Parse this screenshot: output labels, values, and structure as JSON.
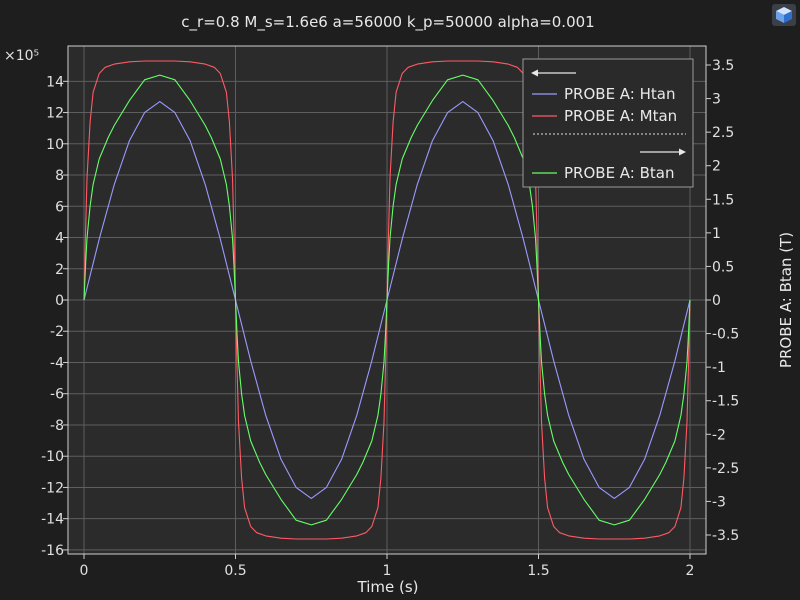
{
  "colors": {
    "background": "#1e1e1f",
    "plot_area": "#2b2b2c",
    "grid": "#5e5e5e",
    "axis": "#cfcfcf",
    "text": "#e6e6e6",
    "legend_bg": "#2a2a2a",
    "legend_border": "#9a9a9a"
  },
  "app_icon": "cube-icon",
  "chart_data": {
    "type": "line",
    "title": "c_r=0.8 M_s=1.6e6 a=56000 k_p=50000 alpha=0.001",
    "xlabel": "Time (s)",
    "ylabel_left": "",
    "ylabel_right": "PROBE A: Btan (T)",
    "left_axis_multiplier": "×10⁵",
    "xlim": [
      0,
      2
    ],
    "ylim_left": [
      -16.5,
      15.5
    ],
    "ylim_right": [
      -3.7,
      3.7
    ],
    "grid": true,
    "legend_position": "top-right",
    "x_ticks": [
      0,
      0.5,
      1,
      1.5,
      2
    ],
    "y_ticks_left": [
      -16,
      -14,
      -12,
      -10,
      -8,
      -6,
      -4,
      -2,
      0,
      2,
      4,
      6,
      8,
      10,
      12,
      14
    ],
    "y_ticks_right": [
      -3.5,
      -3,
      -2.5,
      -2,
      -1.5,
      -1,
      -0.5,
      0,
      0.5,
      1,
      1.5,
      2,
      2.5,
      3,
      3.5
    ],
    "legend": {
      "left_axis_group": [
        "PROBE A: Htan",
        "PROBE A: Mtan"
      ],
      "right_axis_group": [
        "PROBE A: Btan"
      ]
    },
    "series": [
      {
        "name": "PROBE A: Htan",
        "axis": "left",
        "color": "#9a9aff",
        "x": [
          0,
          0.05,
          0.1,
          0.15,
          0.2,
          0.25,
          0.3,
          0.35,
          0.4,
          0.45,
          0.5,
          0.55,
          0.6,
          0.65,
          0.7,
          0.75,
          0.8,
          0.85,
          0.9,
          0.95,
          1,
          1.05,
          1.1,
          1.15,
          1.2,
          1.25,
          1.3,
          1.35,
          1.4,
          1.45,
          1.5,
          1.55,
          1.6,
          1.65,
          1.7,
          1.75,
          1.8,
          1.85,
          1.9,
          1.95,
          2
        ],
        "y": [
          0,
          3.9,
          7.4,
          10.2,
          12.0,
          12.7,
          12.0,
          10.2,
          7.4,
          3.9,
          0,
          -3.9,
          -7.4,
          -10.2,
          -12.0,
          -12.7,
          -12.0,
          -10.2,
          -7.4,
          -3.9,
          0,
          3.9,
          7.4,
          10.2,
          12.0,
          12.7,
          12.0,
          10.2,
          7.4,
          3.9,
          0,
          -3.9,
          -7.4,
          -10.2,
          -12.0,
          -12.7,
          -12.0,
          -10.2,
          -7.4,
          -3.9,
          0
        ]
      },
      {
        "name": "PROBE A: Mtan",
        "axis": "left",
        "color": "#ff5a64",
        "x": [
          0,
          0.005,
          0.01,
          0.02,
          0.03,
          0.05,
          0.07,
          0.1,
          0.15,
          0.2,
          0.25,
          0.3,
          0.35,
          0.4,
          0.43,
          0.45,
          0.47,
          0.48,
          0.49,
          0.495,
          0.5,
          0.505,
          0.51,
          0.52,
          0.53,
          0.55,
          0.57,
          0.6,
          0.65,
          0.7,
          0.75,
          0.8,
          0.85,
          0.9,
          0.93,
          0.95,
          0.97,
          0.98,
          0.99,
          0.995,
          1,
          1.005,
          1.01,
          1.02,
          1.03,
          1.05,
          1.07,
          1.1,
          1.15,
          1.2,
          1.25,
          1.3,
          1.35,
          1.4,
          1.43,
          1.45,
          1.47,
          1.48,
          1.49,
          1.495,
          1.5,
          1.505,
          1.51,
          1.52,
          1.53,
          1.55,
          1.57,
          1.6,
          1.65,
          1.7,
          1.75,
          1.8,
          1.85,
          1.9,
          1.93,
          1.95,
          1.97,
          1.98,
          1.99,
          1.995,
          2
        ],
        "y": [
          0,
          4.2,
          7.8,
          11.4,
          13.3,
          14.5,
          14.9,
          15.1,
          15.25,
          15.3,
          15.3,
          15.3,
          15.25,
          15.1,
          14.9,
          14.5,
          13.3,
          11.4,
          7.8,
          4.2,
          0,
          -4.2,
          -7.8,
          -11.4,
          -13.3,
          -14.5,
          -14.9,
          -15.1,
          -15.25,
          -15.3,
          -15.3,
          -15.3,
          -15.25,
          -15.1,
          -14.9,
          -14.5,
          -13.3,
          -11.4,
          -7.8,
          -4.2,
          0,
          4.2,
          7.8,
          11.4,
          13.3,
          14.5,
          14.9,
          15.1,
          15.25,
          15.3,
          15.3,
          15.3,
          15.25,
          15.1,
          14.9,
          14.5,
          13.3,
          11.4,
          7.8,
          4.2,
          0,
          -4.2,
          -7.8,
          -11.4,
          -13.3,
          -14.5,
          -14.9,
          -15.1,
          -15.25,
          -15.3,
          -15.3,
          -15.3,
          -15.25,
          -15.1,
          -14.9,
          -14.5,
          -13.3,
          -11.4,
          -7.8,
          -4.2,
          0
        ]
      },
      {
        "name": "PROBE A: Btan",
        "axis": "right",
        "color": "#66ff66",
        "x": [
          0,
          0.005,
          0.01,
          0.02,
          0.03,
          0.05,
          0.08,
          0.1,
          0.15,
          0.2,
          0.25,
          0.3,
          0.35,
          0.4,
          0.42,
          0.45,
          0.47,
          0.48,
          0.49,
          0.495,
          0.5,
          0.505,
          0.51,
          0.52,
          0.53,
          0.55,
          0.58,
          0.6,
          0.65,
          0.7,
          0.75,
          0.8,
          0.85,
          0.9,
          0.92,
          0.95,
          0.97,
          0.98,
          0.99,
          0.995,
          1,
          1.005,
          1.01,
          1.02,
          1.03,
          1.05,
          1.08,
          1.1,
          1.15,
          1.2,
          1.25,
          1.3,
          1.35,
          1.4,
          1.42,
          1.45,
          1.47,
          1.48,
          1.49,
          1.495,
          1.5,
          1.505,
          1.51,
          1.52,
          1.53,
          1.55,
          1.58,
          1.6,
          1.65,
          1.7,
          1.75,
          1.8,
          1.85,
          1.9,
          1.92,
          1.95,
          1.97,
          1.98,
          1.99,
          1.995,
          2
        ],
        "y": [
          0,
          0.5,
          0.92,
          1.4,
          1.72,
          2.1,
          2.42,
          2.6,
          2.97,
          3.28,
          3.35,
          3.28,
          2.97,
          2.6,
          2.42,
          2.1,
          1.72,
          1.4,
          0.92,
          0.5,
          0,
          -0.5,
          -0.92,
          -1.4,
          -1.72,
          -2.1,
          -2.42,
          -2.6,
          -2.97,
          -3.28,
          -3.35,
          -3.28,
          -2.97,
          -2.6,
          -2.42,
          -2.1,
          -1.72,
          -1.4,
          -0.92,
          -0.5,
          0,
          0.5,
          0.92,
          1.4,
          1.72,
          2.1,
          2.42,
          2.6,
          2.97,
          3.28,
          3.35,
          3.28,
          2.97,
          2.6,
          2.42,
          2.1,
          1.72,
          1.4,
          0.92,
          0.5,
          0,
          -0.5,
          -0.92,
          -1.4,
          -1.72,
          -2.1,
          -2.42,
          -2.6,
          -2.97,
          -3.28,
          -3.35,
          -3.28,
          -2.97,
          -2.6,
          -2.42,
          -2.1,
          -1.72,
          -1.4,
          -0.92,
          -0.5,
          0
        ]
      }
    ]
  }
}
